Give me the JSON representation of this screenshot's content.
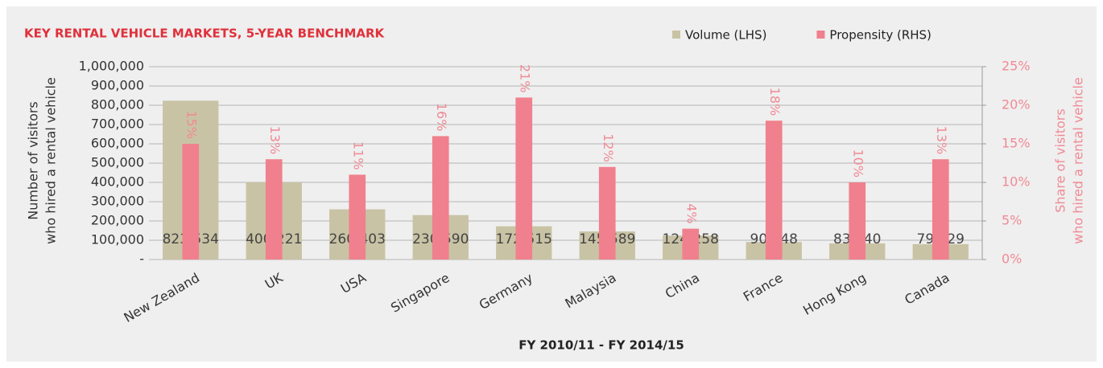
{
  "chart_data": {
    "type": "bar",
    "title": "KEY RENTAL VEHICLE MARKETS, 5-YEAR BENCHMARK",
    "x_label": "FY 2010/11 - FY 2014/15",
    "y_label": [
      "Number of visitors",
      "who hired a rental vehicle"
    ],
    "y2_label": [
      "Share of visitors",
      "who hired a rental vehicle"
    ],
    "categories": [
      "New Zealand",
      "UK",
      "USA",
      "Singapore",
      "Germany",
      "Malaysia",
      "China",
      "France",
      "Hong Kong",
      "Canada"
    ],
    "series": [
      {
        "name": "Volume (LHS)",
        "color": "#c9c3a5",
        "values": [
          823534,
          400221,
          260403,
          230590,
          172515,
          145589,
          124258,
          90848,
          83840,
          79929
        ],
        "value_labels": [
          "823,534",
          "400,221",
          "260,403",
          "230,590",
          "172,515",
          "145,589",
          "124,258",
          "90,848",
          "83,840",
          "79,929"
        ]
      },
      {
        "name": "Propensity (RHS)",
        "color": "#f0808d",
        "axis": "y2",
        "values": [
          15,
          13,
          11,
          16,
          21,
          12,
          4,
          18,
          10,
          13
        ],
        "value_labels": [
          "15%",
          "13%",
          "11%",
          "16%",
          "21%",
          "12%",
          "4%",
          "18%",
          "10%",
          "13%"
        ]
      }
    ],
    "ylim": [
      0,
      1000000
    ],
    "yticks": [
      {
        "value": 0,
        "label": "-"
      },
      {
        "value": 100000,
        "label": "100,000"
      },
      {
        "value": 200000,
        "label": "200,000"
      },
      {
        "value": 300000,
        "label": "300,000"
      },
      {
        "value": 400000,
        "label": "400,000"
      },
      {
        "value": 500000,
        "label": "500,000"
      },
      {
        "value": 600000,
        "label": "600,000"
      },
      {
        "value": 700000,
        "label": "700,000"
      },
      {
        "value": 800000,
        "label": "800,000"
      },
      {
        "value": 900000,
        "label": "900,000"
      },
      {
        "value": 1000000,
        "label": "1,000,000"
      }
    ],
    "y2lim": [
      0,
      25
    ],
    "y2ticks": [
      {
        "value": 0,
        "label": "0%"
      },
      {
        "value": 5,
        "label": "5%"
      },
      {
        "value": 10,
        "label": "10%"
      },
      {
        "value": 15,
        "label": "15%"
      },
      {
        "value": 20,
        "label": "20%"
      },
      {
        "value": 25,
        "label": "25%"
      }
    ],
    "grid": true,
    "legend": "top-right"
  }
}
